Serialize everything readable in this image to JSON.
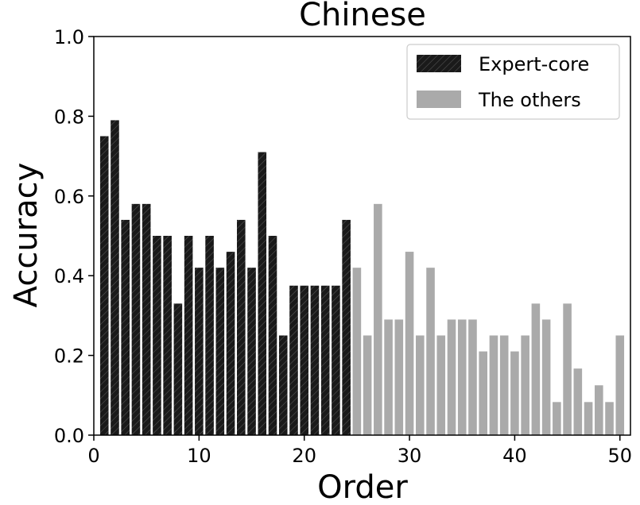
{
  "chart_data": {
    "type": "bar",
    "title": "Chinese",
    "xlabel": "Order",
    "ylabel": "Accuracy",
    "xlim": [
      0,
      51
    ],
    "ylim": [
      0,
      1.0
    ],
    "xticks": [
      "0",
      "10",
      "20",
      "30",
      "40",
      "50"
    ],
    "yticks": [
      "0.0",
      "0.2",
      "0.4",
      "0.6",
      "0.8",
      "1.0"
    ],
    "grid": false,
    "legend_position": "top-right",
    "series": [
      {
        "name": "Expert-core",
        "color": "#1a1a1a",
        "hatch": true,
        "x": [
          1,
          2,
          3,
          4,
          5,
          6,
          7,
          8,
          9,
          10,
          11,
          12,
          13,
          14,
          15,
          16,
          17,
          18,
          19,
          20,
          21,
          22,
          23,
          24
        ],
        "values": [
          0.75,
          0.79,
          0.54,
          0.58,
          0.58,
          0.5,
          0.5,
          0.33,
          0.5,
          0.42,
          0.5,
          0.42,
          0.46,
          0.54,
          0.42,
          0.71,
          0.5,
          0.25,
          0.375,
          0.375,
          0.375,
          0.375,
          0.375,
          0.54
        ]
      },
      {
        "name": "The others",
        "color": "#aaaaaa",
        "hatch": false,
        "x": [
          25,
          26,
          27,
          28,
          29,
          30,
          31,
          32,
          33,
          34,
          35,
          36,
          37,
          38,
          39,
          40,
          41,
          42,
          43,
          44,
          45,
          46,
          47,
          48,
          49,
          50
        ],
        "values": [
          0.42,
          0.25,
          0.58,
          0.29,
          0.29,
          0.46,
          0.25,
          0.42,
          0.25,
          0.29,
          0.29,
          0.29,
          0.21,
          0.25,
          0.25,
          0.21,
          0.25,
          0.33,
          0.29,
          0.083,
          0.33,
          0.167,
          0.083,
          0.125,
          0.083,
          0.25
        ]
      }
    ]
  }
}
